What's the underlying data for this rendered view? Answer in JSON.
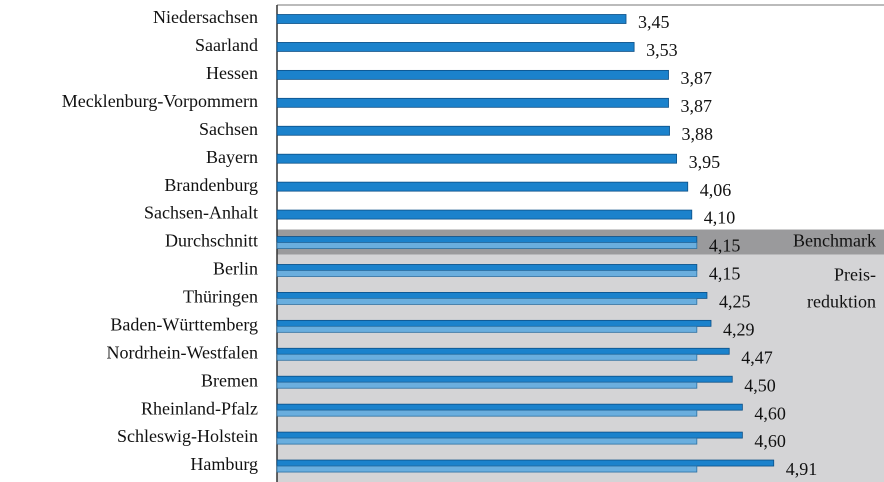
{
  "chart_data": {
    "type": "bar",
    "orientation": "horizontal",
    "categories": [
      "Niedersachsen",
      "Saarland",
      "Hessen",
      "Mecklenburg-Vorpommern",
      "Sachsen",
      "Bayern",
      "Brandenburg",
      "Sachsen-Anhalt",
      "Durchschnitt",
      "Berlin",
      "Thüringen",
      "Baden-Württemberg",
      "Nordrhein-Westfalen",
      "Bremen",
      "Rheinland-Pfalz",
      "Schleswig-Holstein",
      "Hamburg"
    ],
    "values": [
      3.45,
      3.53,
      3.87,
      3.87,
      3.88,
      3.95,
      4.06,
      4.1,
      4.15,
      4.15,
      4.25,
      4.29,
      4.47,
      4.5,
      4.6,
      4.6,
      4.91
    ],
    "value_labels": [
      "3,45",
      "3,53",
      "3,87",
      "3,87",
      "3,88",
      "3,95",
      "4,06",
      "4,10",
      "4,15",
      "4,15",
      "4,25",
      "4,29",
      "4,47",
      "4,50",
      "4,60",
      "4,60",
      "4,91"
    ],
    "color": "#1b82cc",
    "benchmark_color": "#6aaede",
    "xlim": [
      0,
      6
    ],
    "annotations": [
      "Benchmark",
      "Preis-",
      "reduktion"
    ]
  }
}
